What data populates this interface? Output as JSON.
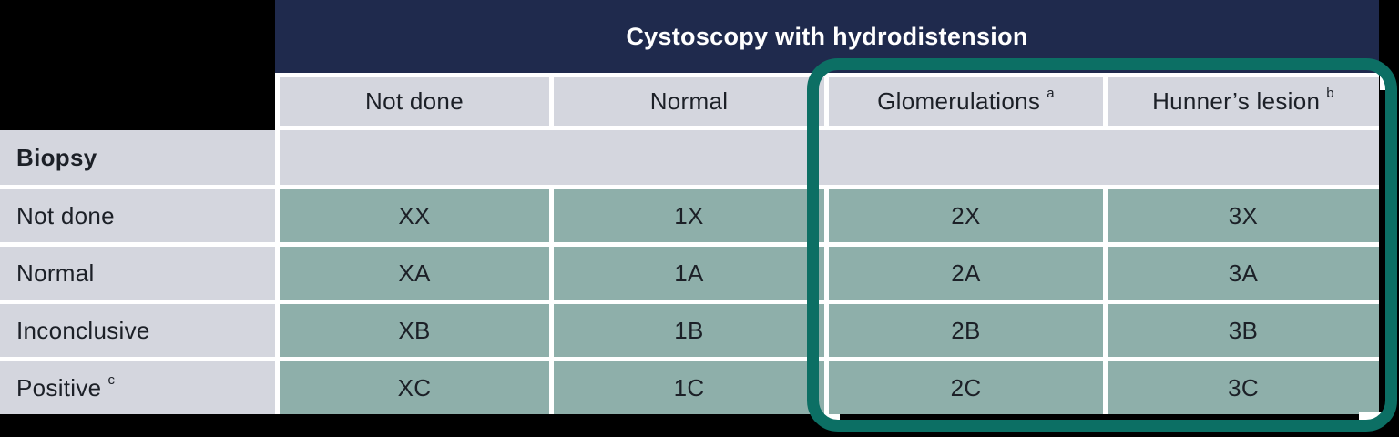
{
  "table": {
    "title": "Cystoscopy with hydrodistension",
    "row_axis_label": "Biopsy",
    "columns": [
      {
        "label": "Not done",
        "sup": ""
      },
      {
        "label": "Normal",
        "sup": ""
      },
      {
        "label": "Glomerulations",
        "sup": "a"
      },
      {
        "label": "Hunner’s lesion",
        "sup": "b"
      }
    ],
    "rows": [
      {
        "label": "Not done",
        "sup": "",
        "cells": [
          "XX",
          "1X",
          "2X",
          "3X"
        ]
      },
      {
        "label": "Normal",
        "sup": "",
        "cells": [
          "XA",
          "1A",
          "2A",
          "3A"
        ]
      },
      {
        "label": "Inconclusive",
        "sup": "",
        "cells": [
          "XB",
          "1B",
          "2B",
          "3B"
        ]
      },
      {
        "label": "Positive",
        "sup": "c",
        "cells": [
          "XC",
          "1C",
          "2C",
          "3C"
        ]
      }
    ],
    "highlight": {
      "description": "teal rounded outline around Glomerulations and Hunner’s lesion columns",
      "columns": [
        "Glomerulations",
        "Hunner’s lesion"
      ]
    }
  },
  "colors": {
    "header_navy": "#1f2a4d",
    "cell_gray": "#d4d6de",
    "cell_green": "#8eafaa",
    "highlight_teal": "#0c6f64",
    "divider_white": "#ffffff",
    "text_dark": "#1c2027",
    "title_white": "#ffffff",
    "background": "#000000"
  },
  "chart_data": {
    "type": "table",
    "title": "Cystoscopy with hydrodistension",
    "row_header": "Biopsy",
    "columns": [
      "Not done",
      "Normal",
      "Glomerulations a",
      "Hunner's lesion b"
    ],
    "rows": [
      "Not done",
      "Normal",
      "Inconclusive",
      "Positive c"
    ],
    "values": [
      [
        "XX",
        "1X",
        "2X",
        "3X"
      ],
      [
        "XA",
        "1A",
        "2A",
        "3A"
      ],
      [
        "XB",
        "1B",
        "2B",
        "3B"
      ],
      [
        "XC",
        "1C",
        "2C",
        "3C"
      ]
    ],
    "footnote_markers": [
      "a",
      "b",
      "c"
    ],
    "highlighted_columns": [
      "Glomerulations a",
      "Hunner's lesion b"
    ],
    "legend_position": "none",
    "grid": true
  }
}
